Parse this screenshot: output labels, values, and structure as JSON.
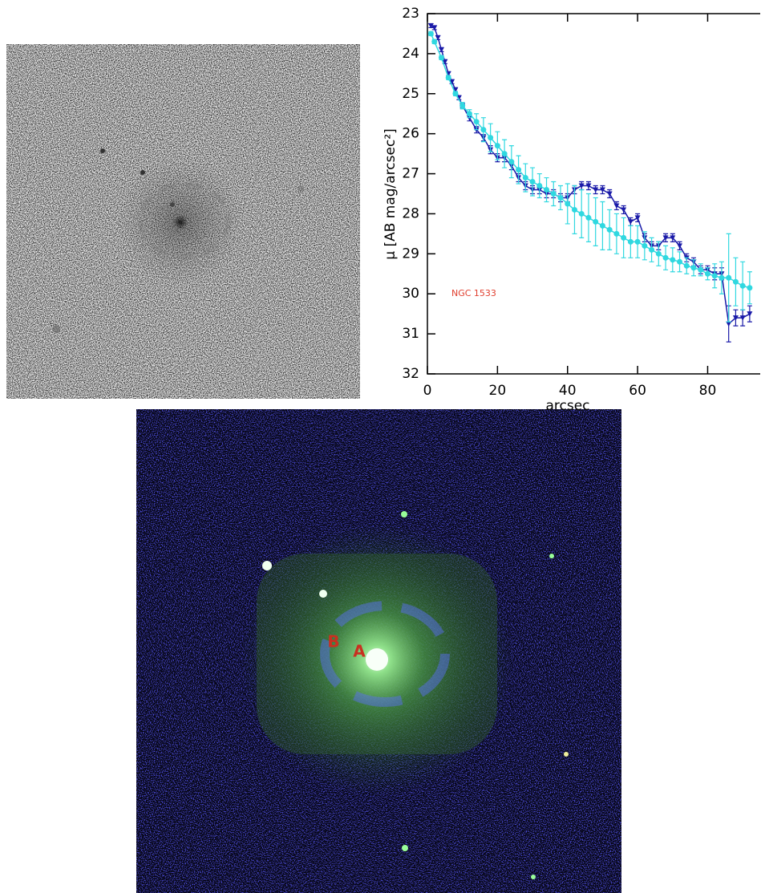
{
  "chart_data": {
    "type": "line",
    "xlabel": "arcsec",
    "ylabel": "μ [AB mag/arcsec²]",
    "annotation": "NGC 1533",
    "xlim": [
      0,
      95
    ],
    "ylim": [
      32,
      23
    ],
    "xticks": [
      0,
      20,
      40,
      60,
      80
    ],
    "yticks": [
      23,
      24,
      25,
      26,
      27,
      28,
      29,
      30,
      31,
      32
    ],
    "series": [
      {
        "color": "#1a1aa8",
        "marker": "triangle",
        "x": [
          1,
          2,
          3,
          4,
          5,
          6,
          7,
          8,
          9,
          10,
          12,
          14,
          16,
          18,
          20,
          22,
          24,
          26,
          28,
          30,
          32,
          34,
          36,
          38,
          40,
          42,
          44,
          46,
          48,
          50,
          52,
          54,
          56,
          58,
          60,
          62,
          64,
          66,
          68,
          70,
          72,
          74,
          76,
          78,
          80,
          82,
          84,
          86,
          88,
          90,
          92
        ],
        "values": [
          23.3,
          23.35,
          23.6,
          23.9,
          24.2,
          24.5,
          24.7,
          24.9,
          25.1,
          25.3,
          25.6,
          25.9,
          26.1,
          26.4,
          26.6,
          26.6,
          26.8,
          27.1,
          27.3,
          27.4,
          27.4,
          27.5,
          27.5,
          27.6,
          27.6,
          27.4,
          27.3,
          27.3,
          27.4,
          27.4,
          27.5,
          27.8,
          27.9,
          28.2,
          28.1,
          28.6,
          28.8,
          28.8,
          28.6,
          28.6,
          28.8,
          29.1,
          29.2,
          29.4,
          29.4,
          29.5,
          29.5,
          30.75,
          30.6,
          30.6,
          30.5
        ],
        "errors": [
          0.05,
          0.05,
          0.05,
          0.05,
          0.05,
          0.05,
          0.05,
          0.05,
          0.05,
          0.05,
          0.08,
          0.08,
          0.08,
          0.1,
          0.1,
          0.1,
          0.1,
          0.1,
          0.1,
          0.1,
          0.1,
          0.1,
          0.1,
          0.1,
          0.1,
          0.1,
          0.1,
          0.1,
          0.1,
          0.1,
          0.1,
          0.1,
          0.1,
          0.1,
          0.1,
          0.1,
          0.1,
          0.1,
          0.1,
          0.1,
          0.1,
          0.1,
          0.1,
          0.1,
          0.1,
          0.15,
          0.15,
          0.45,
          0.2,
          0.2,
          0.2
        ]
      },
      {
        "color": "#30d8e0",
        "marker": "circle",
        "x": [
          1,
          2,
          4,
          6,
          8,
          10,
          12,
          14,
          16,
          18,
          20,
          22,
          24,
          26,
          28,
          30,
          32,
          34,
          36,
          38,
          40,
          42,
          44,
          46,
          48,
          50,
          52,
          54,
          56,
          58,
          60,
          62,
          64,
          66,
          68,
          70,
          72,
          74,
          76,
          78,
          80,
          82,
          84,
          86,
          88,
          90,
          92
        ],
        "values": [
          23.5,
          23.7,
          24.1,
          24.6,
          25.0,
          25.3,
          25.5,
          25.7,
          25.9,
          26.1,
          26.3,
          26.5,
          26.7,
          26.9,
          27.1,
          27.2,
          27.3,
          27.4,
          27.5,
          27.6,
          27.75,
          27.9,
          28.0,
          28.1,
          28.2,
          28.3,
          28.4,
          28.5,
          28.6,
          28.7,
          28.7,
          28.8,
          28.9,
          29.0,
          29.1,
          29.15,
          29.2,
          29.3,
          29.35,
          29.4,
          29.5,
          29.55,
          29.6,
          29.6,
          29.7,
          29.8,
          29.85
        ],
        "errors": [
          0.05,
          0.05,
          0.05,
          0.05,
          0.05,
          0.08,
          0.1,
          0.2,
          0.3,
          0.35,
          0.35,
          0.35,
          0.4,
          0.35,
          0.35,
          0.35,
          0.3,
          0.3,
          0.3,
          0.3,
          0.5,
          0.6,
          0.6,
          0.6,
          0.6,
          0.6,
          0.5,
          0.5,
          0.5,
          0.4,
          0.4,
          0.35,
          0.3,
          0.3,
          0.3,
          0.3,
          0.25,
          0.2,
          0.2,
          0.15,
          0.15,
          0.3,
          0.4,
          1.1,
          0.6,
          0.6,
          0.4
        ]
      }
    ]
  },
  "color_image": {
    "labels": [
      "B",
      "A"
    ]
  }
}
